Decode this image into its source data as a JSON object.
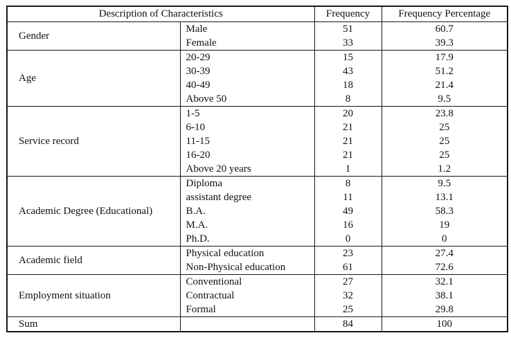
{
  "table": {
    "headers": {
      "description": "Description of Characteristics",
      "frequency": "Frequency",
      "frequency_percentage": "Frequency Percentage"
    },
    "groups": [
      {
        "category": "Gender",
        "rows": [
          [
            "Male",
            "51",
            "60.7"
          ],
          [
            "Female",
            "33",
            "39.3"
          ]
        ]
      },
      {
        "category": "Age",
        "rows": [
          [
            "20-29",
            "15",
            "17.9"
          ],
          [
            "30-39",
            "43",
            "51.2"
          ],
          [
            "40-49",
            "18",
            "21.4"
          ],
          [
            "Above 50",
            "8",
            "9.5"
          ]
        ]
      },
      {
        "category": "Service record",
        "rows": [
          [
            "1-5",
            "20",
            "23.8"
          ],
          [
            "6-10",
            "21",
            "25"
          ],
          [
            "11-15",
            "21",
            "25"
          ],
          [
            "16-20",
            "21",
            "25"
          ],
          [
            "Above 20 years",
            "1",
            "1.2"
          ]
        ]
      },
      {
        "category": "Academic Degree (Educational)",
        "rows": [
          [
            "Diploma",
            "8",
            "9.5"
          ],
          [
            "assistant degree",
            "11",
            "13.1"
          ],
          [
            "B.A.",
            "49",
            "58.3"
          ],
          [
            "M.A.",
            "16",
            "19"
          ],
          [
            "Ph.D.",
            "0",
            "0"
          ]
        ]
      },
      {
        "category": "Academic field",
        "rows": [
          [
            "Physical education",
            "23",
            "27.4"
          ],
          [
            "Non-Physical education",
            "61",
            "72.6"
          ]
        ]
      },
      {
        "category": "Employment situation",
        "rows": [
          [
            "Conventional",
            "27",
            "32.1"
          ],
          [
            "Contractual",
            "32",
            "38.1"
          ],
          [
            "Formal",
            "25",
            "29.8"
          ]
        ]
      }
    ],
    "sum": {
      "label": "Sum",
      "frequency": "84",
      "frequency_percentage": "100"
    }
  }
}
